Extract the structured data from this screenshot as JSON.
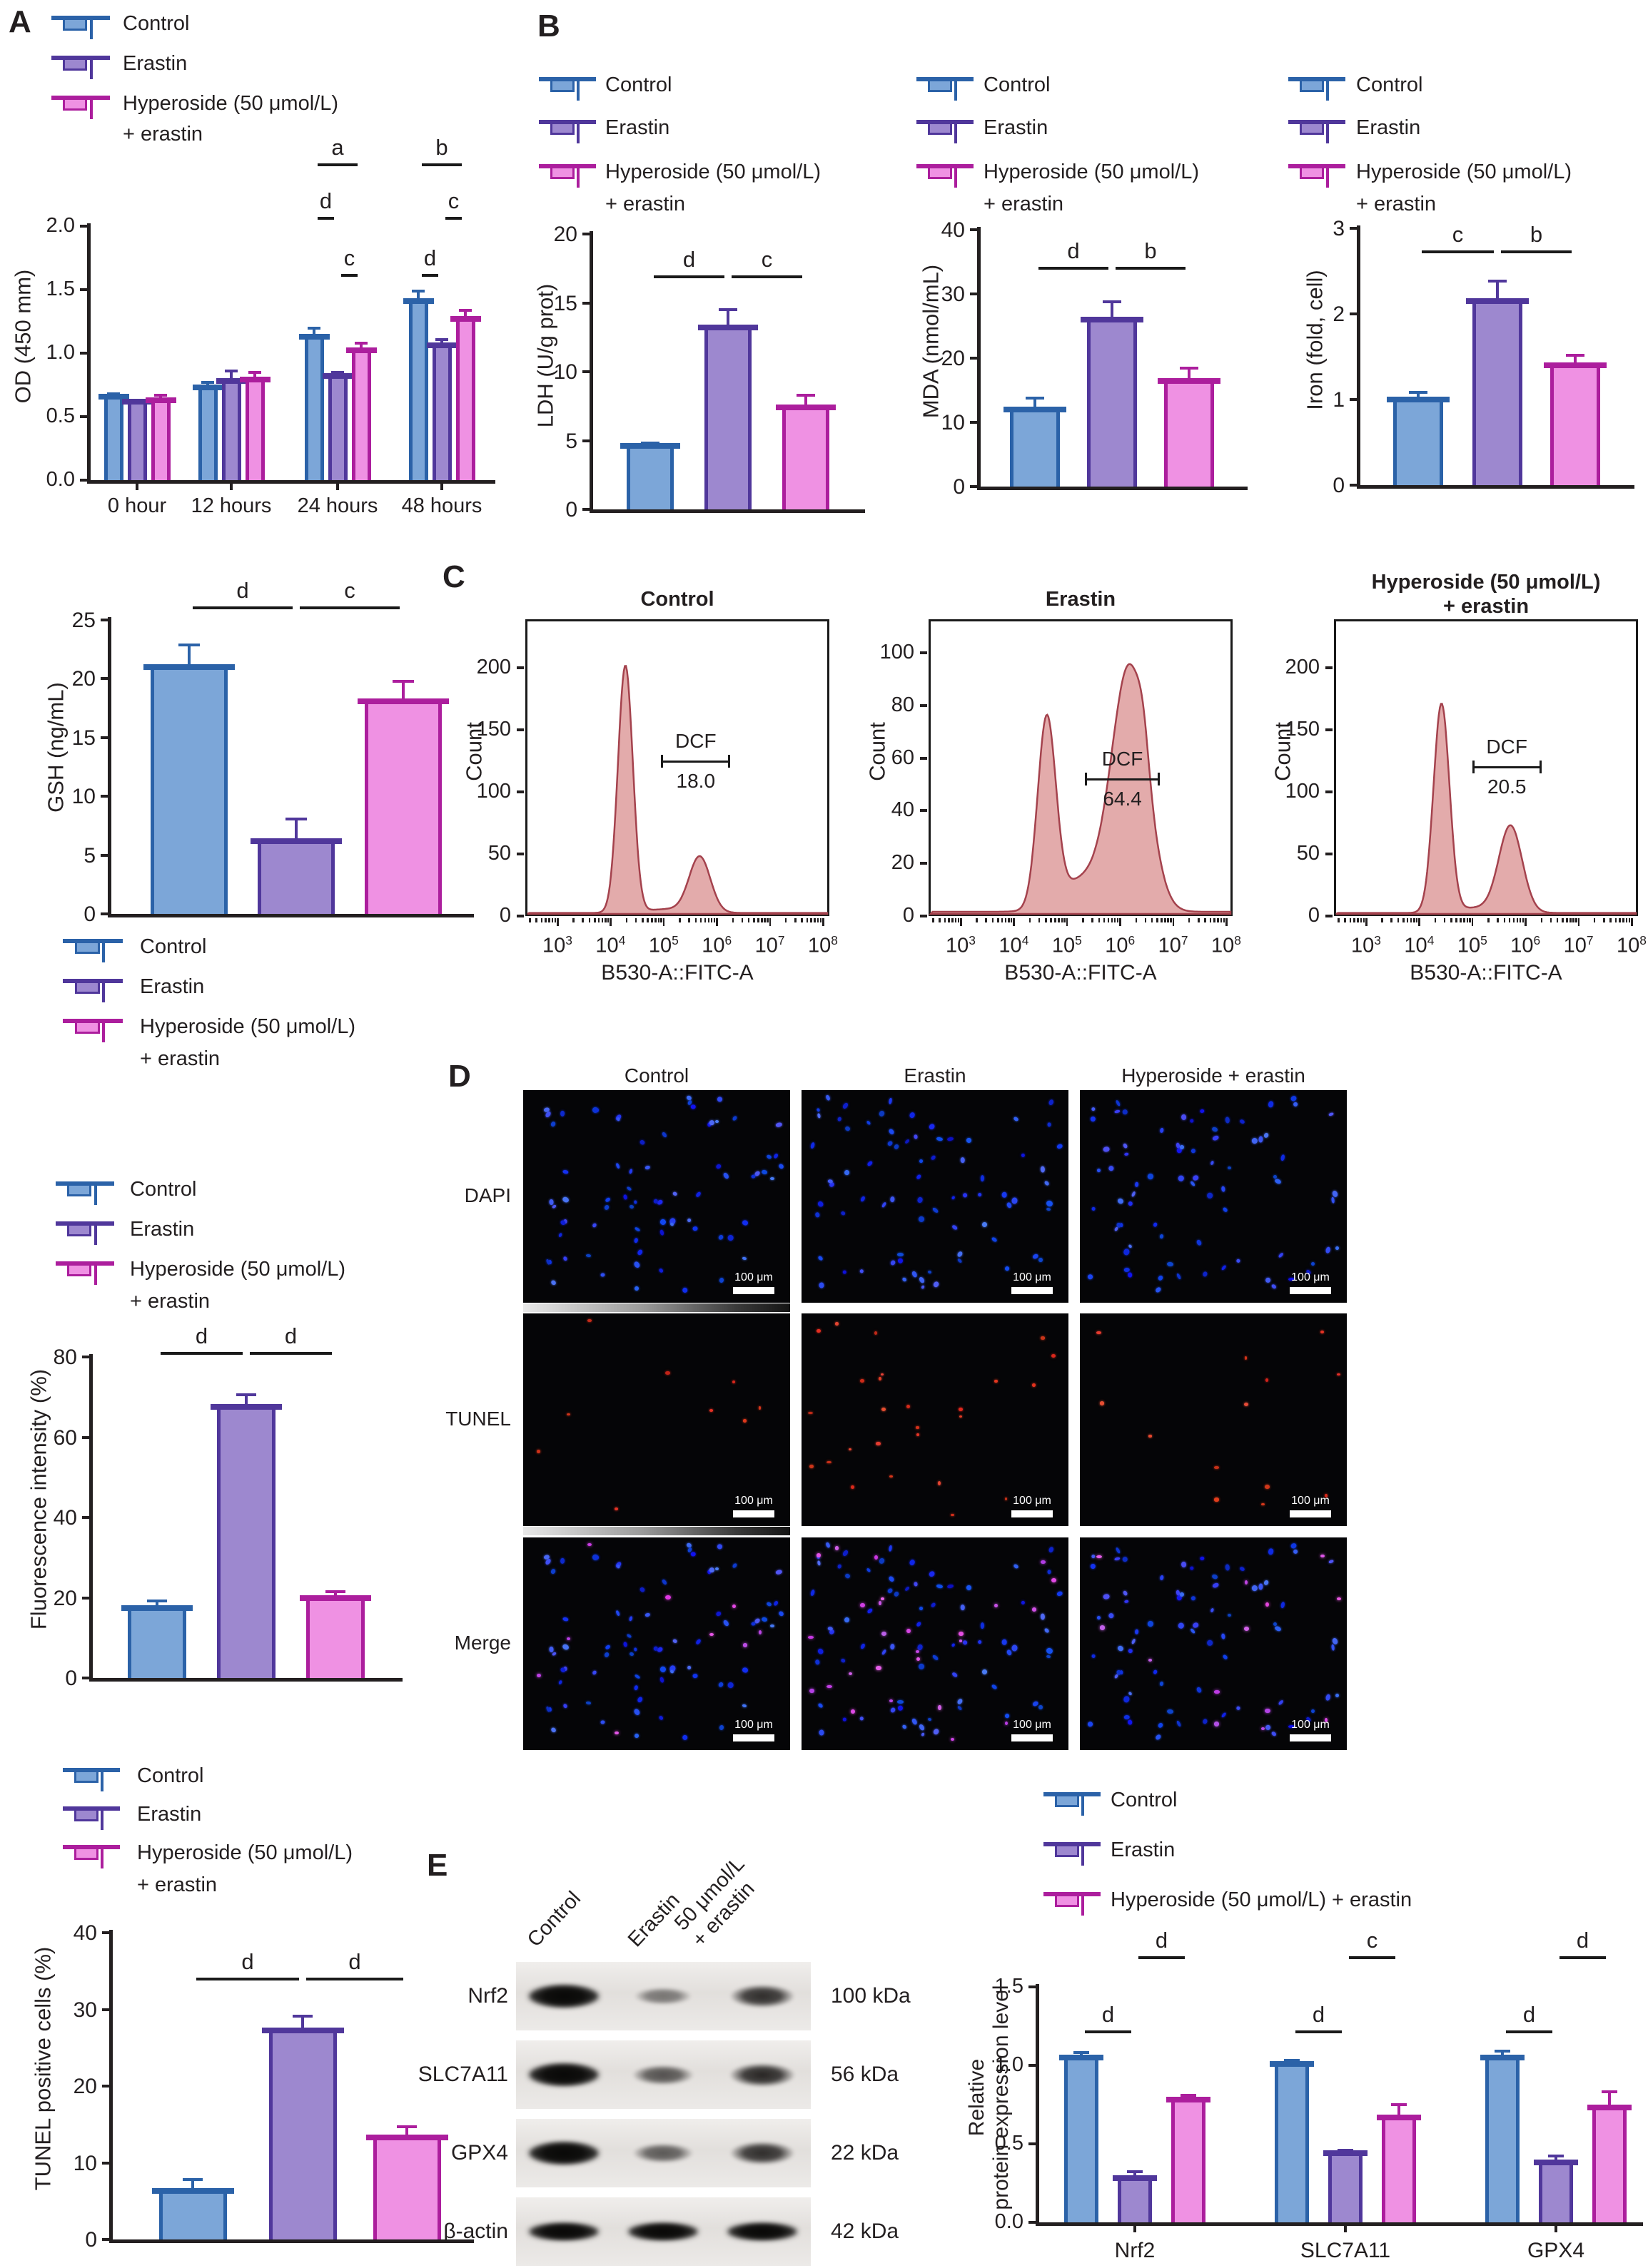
{
  "panels": {
    "A": "A",
    "B": "B",
    "C": "C",
    "D": "D",
    "E": "E"
  },
  "colors": {
    "control_border": "#2B62A8",
    "control_fill": "#7CA6D8",
    "erastin_border": "#50379B",
    "erastin_fill": "#9D88CF",
    "hyperoside_border": "#AC1E9D",
    "hyperoside_fill": "#EF91E3",
    "histogram_fill": "#DE9C9C",
    "histogram_stroke": "#A4424D",
    "text": "#231F20"
  },
  "legend": {
    "items": [
      {
        "key": "control",
        "label": "Control"
      },
      {
        "key": "erastin",
        "label": "Erastin"
      },
      {
        "key": "hyperoside",
        "label": "Hyperoside (50 μmol/L)",
        "label_line2": "+ erastin",
        "label_inline": "Hyperoside (50 μmol/L) + erastin"
      }
    ]
  },
  "chart_data": [
    {
      "id": "od",
      "type": "bar",
      "title": "",
      "ylabel": "OD (450 mm)",
      "categories": [
        "0 hour",
        "12 hours",
        "24 hours",
        "48 hours"
      ],
      "series": [
        {
          "name": "Control",
          "values": [
            0.66,
            0.73,
            1.13,
            1.41
          ],
          "errors": [
            0.03,
            0.05,
            0.08,
            0.09
          ]
        },
        {
          "name": "Erastin",
          "values": [
            0.62,
            0.78,
            0.82,
            1.06
          ],
          "errors": [
            0.02,
            0.09,
            0.04,
            0.06
          ]
        },
        {
          "name": "Hyperoside (50 μmol/L) + erastin",
          "values": [
            0.63,
            0.79,
            1.02,
            1.27
          ],
          "errors": [
            0.05,
            0.07,
            0.07,
            0.08
          ]
        }
      ],
      "ylim": [
        0,
        2.0
      ],
      "yticks": [
        0,
        0.5,
        1,
        1.5,
        2
      ],
      "significance": [
        {
          "label": "a",
          "at": "24 hours",
          "between": [
            "Control",
            "Hyperoside"
          ]
        },
        {
          "label": "d",
          "at": "24 hours",
          "between": [
            "Control",
            "Erastin"
          ]
        },
        {
          "label": "c",
          "at": "24 hours",
          "between": [
            "Erastin",
            "Hyperoside"
          ]
        },
        {
          "label": "b",
          "at": "48 hours",
          "between": [
            "Control",
            "Hyperoside"
          ]
        },
        {
          "label": "c",
          "at": "48 hours",
          "between": [
            "Erastin",
            "Hyperoside"
          ]
        },
        {
          "label": "d",
          "at": "48 hours",
          "between": [
            "Control",
            "Erastin"
          ]
        }
      ]
    },
    {
      "id": "ldh",
      "type": "bar",
      "ylabel": "LDH (U/g prot)",
      "categories": [
        "Control",
        "Erastin",
        "Hyperoside (50 μmol/L) + erastin"
      ],
      "values": [
        4.6,
        13.2,
        7.4
      ],
      "errors": [
        0.3,
        1.4,
        1.0
      ],
      "ylim": [
        0,
        20
      ],
      "yticks": [
        0,
        5,
        10,
        15,
        20
      ],
      "significance": [
        {
          "label": "d",
          "between": [
            "Control",
            "Erastin"
          ]
        },
        {
          "label": "c",
          "between": [
            "Erastin",
            "Hyperoside"
          ]
        }
      ]
    },
    {
      "id": "mda",
      "type": "bar",
      "ylabel": "MDA (nmol/mL)",
      "categories": [
        "Control",
        "Erastin",
        "Hyperoside (50 μmol/L) + erastin"
      ],
      "values": [
        12,
        26,
        16.5
      ],
      "errors": [
        2,
        3,
        2.2
      ],
      "ylim": [
        0,
        40
      ],
      "yticks": [
        0,
        10,
        20,
        30,
        40
      ],
      "significance": [
        {
          "label": "d",
          "between": [
            "Control",
            "Erastin"
          ]
        },
        {
          "label": "b",
          "between": [
            "Erastin",
            "Hyperoside"
          ]
        }
      ]
    },
    {
      "id": "iron",
      "type": "bar",
      "ylabel": "Iron (fold, cell)",
      "categories": [
        "Control",
        "Erastin",
        "Hyperoside (50 μmol/L) + erastin"
      ],
      "values": [
        1.0,
        2.15,
        1.4
      ],
      "errors": [
        0.1,
        0.25,
        0.13
      ],
      "ylim": [
        0,
        3
      ],
      "yticks": [
        0,
        1,
        2,
        3
      ],
      "significance": [
        {
          "label": "c",
          "between": [
            "Control",
            "Erastin"
          ]
        },
        {
          "label": "b",
          "between": [
            "Erastin",
            "Hyperoside"
          ]
        }
      ]
    },
    {
      "id": "gsh",
      "type": "bar",
      "ylabel": "GSH (ng/mL)",
      "categories": [
        "Control",
        "Erastin",
        "Hyperoside (50 μmol/L) + erastin"
      ],
      "values": [
        21,
        6.2,
        18.1
      ],
      "errors": [
        2,
        2,
        1.8
      ],
      "ylim": [
        0,
        25
      ],
      "yticks": [
        0,
        5,
        10,
        15,
        20,
        25
      ],
      "significance": [
        {
          "label": "d",
          "between": [
            "Control",
            "Erastin"
          ]
        },
        {
          "label": "c",
          "between": [
            "Erastin",
            "Hyperoside"
          ]
        }
      ]
    },
    {
      "id": "flow_control",
      "type": "area",
      "title": "Control",
      "xlabel": "B530-A::FITC-A",
      "ylabel": "Count",
      "x_scale": "log10",
      "xticks": [
        3,
        4,
        5,
        6,
        7,
        8
      ],
      "yticks": [
        0,
        50,
        100,
        150,
        200
      ],
      "peaks": [
        {
          "x": 19000,
          "count": 199
        },
        {
          "x": 480000,
          "count": 45
        }
      ],
      "gate": {
        "label": "DCF",
        "percent": "18.0",
        "from": 90000,
        "to": 1800000
      }
    },
    {
      "id": "flow_erastin",
      "type": "area",
      "title": "Erastin",
      "xlabel": "B530-A::FITC-A",
      "ylabel": "Count",
      "x_scale": "log10",
      "xticks": [
        3,
        4,
        5,
        6,
        7,
        8
      ],
      "yticks": [
        0,
        20,
        40,
        60,
        80,
        100
      ],
      "peaks": [
        {
          "x": 42000,
          "count": 75
        },
        {
          "x": 1500000,
          "count": 94
        }
      ],
      "gate": {
        "label": "DCF",
        "percent": "64.4",
        "from": 220000,
        "to": 5600000
      }
    },
    {
      "id": "flow_hyperoside",
      "type": "area",
      "title": "Hyperoside (50 μmol/L)",
      "title_line2": "+ erastin",
      "xlabel": "B530-A::FITC-A",
      "ylabel": "Count",
      "x_scale": "log10",
      "xticks": [
        3,
        4,
        5,
        6,
        7,
        8
      ],
      "yticks": [
        0,
        50,
        100,
        150,
        200
      ],
      "peaks": [
        {
          "x": 26000,
          "count": 168
        },
        {
          "x": 520000,
          "count": 71
        }
      ],
      "gate": {
        "label": "DCF",
        "percent": "20.5",
        "from": 100000,
        "to": 2000000
      }
    },
    {
      "id": "fluorescence",
      "type": "bar",
      "ylabel": "Fluorescence intensity (%)",
      "categories": [
        "Control",
        "Erastin",
        "Hyperoside (50 μmol/L) + erastin"
      ],
      "values": [
        17.5,
        67.5,
        20
      ],
      "errors": [
        2,
        3.5,
        1.8
      ],
      "ylim": [
        0,
        80
      ],
      "yticks": [
        0,
        20,
        40,
        60,
        80
      ],
      "significance": [
        {
          "label": "d",
          "between": [
            "Control",
            "Erastin"
          ]
        },
        {
          "label": "d",
          "between": [
            "Erastin",
            "Hyperoside"
          ]
        }
      ]
    },
    {
      "id": "tunel",
      "type": "bar",
      "ylabel": "TUNEL positive cells (%)",
      "categories": [
        "Control",
        "Erastin",
        "Hyperoside (50 μmol/L) + erastin"
      ],
      "values": [
        6.3,
        27.3,
        13.3
      ],
      "errors": [
        1.7,
        2.0,
        1.6
      ],
      "ylim": [
        0,
        40
      ],
      "yticks": [
        0,
        10,
        20,
        30,
        40
      ],
      "significance": [
        {
          "label": "d",
          "between": [
            "Control",
            "Erastin"
          ]
        },
        {
          "label": "d",
          "between": [
            "Erastin",
            "Hyperoside"
          ]
        }
      ]
    },
    {
      "id": "protein",
      "type": "bar",
      "ylabel": "Relative\nprotein expression level",
      "categories": [
        "Nrf2",
        "SLC7A11",
        "GPX4"
      ],
      "series": [
        {
          "name": "Control",
          "values": [
            1.05,
            1.01,
            1.05
          ],
          "errors": [
            0.04,
            0.03,
            0.05
          ]
        },
        {
          "name": "Erastin",
          "values": [
            0.28,
            0.44,
            0.38
          ],
          "errors": [
            0.05,
            0.03,
            0.05
          ]
        },
        {
          "name": "Hyperoside (50 μmol/L) + erastin",
          "values": [
            0.78,
            0.67,
            0.73
          ],
          "errors": [
            0.04,
            0.09,
            0.11
          ]
        }
      ],
      "ylim": [
        0,
        1.5
      ],
      "yticks": [
        0,
        0.5,
        1,
        1.5
      ],
      "significance": [
        {
          "label": "d",
          "at": "Nrf2",
          "between": [
            "Control",
            "Erastin"
          ]
        },
        {
          "label": "d",
          "at": "Nrf2",
          "between": [
            "Erastin",
            "Hyperoside"
          ]
        },
        {
          "label": "d",
          "at": "SLC7A11",
          "between": [
            "Control",
            "Erastin"
          ]
        },
        {
          "label": "c",
          "at": "SLC7A11",
          "between": [
            "Erastin",
            "Hyperoside"
          ]
        },
        {
          "label": "d",
          "at": "GPX4",
          "between": [
            "Control",
            "Erastin"
          ]
        },
        {
          "label": "d",
          "at": "GPX4",
          "between": [
            "Erastin",
            "Hyperoside"
          ]
        }
      ]
    }
  ],
  "panelD": {
    "col_headers": [
      "Control",
      "Erastin",
      "Hyperoside + erastin"
    ],
    "row_labels": [
      "DAPI",
      "TUNEL",
      "Merge"
    ],
    "scale_bar": "100 μm",
    "dapi_cells_per_field": 74,
    "tunel_positive_spots": {
      "control": 9,
      "erastin": 26,
      "hyperoside": 13
    }
  },
  "panelE": {
    "lane_labels": [
      "Control",
      "Erastin",
      "50 μmol/L\n+ erastin"
    ],
    "blot_rows": [
      {
        "protein": "Nrf2",
        "mw": "100 kDa",
        "band_intensities": [
          1.0,
          0.3,
          0.8
        ]
      },
      {
        "protein": "SLC7A11",
        "mw": "56 kDa",
        "band_intensities": [
          1.0,
          0.55,
          0.85
        ]
      },
      {
        "protein": "GPX4",
        "mw": "22 kDa",
        "band_intensities": [
          1.0,
          0.5,
          0.8
        ]
      },
      {
        "protein": "β-actin",
        "mw": "42 kDa",
        "band_intensities": [
          1.0,
          1.0,
          1.0
        ]
      }
    ]
  }
}
